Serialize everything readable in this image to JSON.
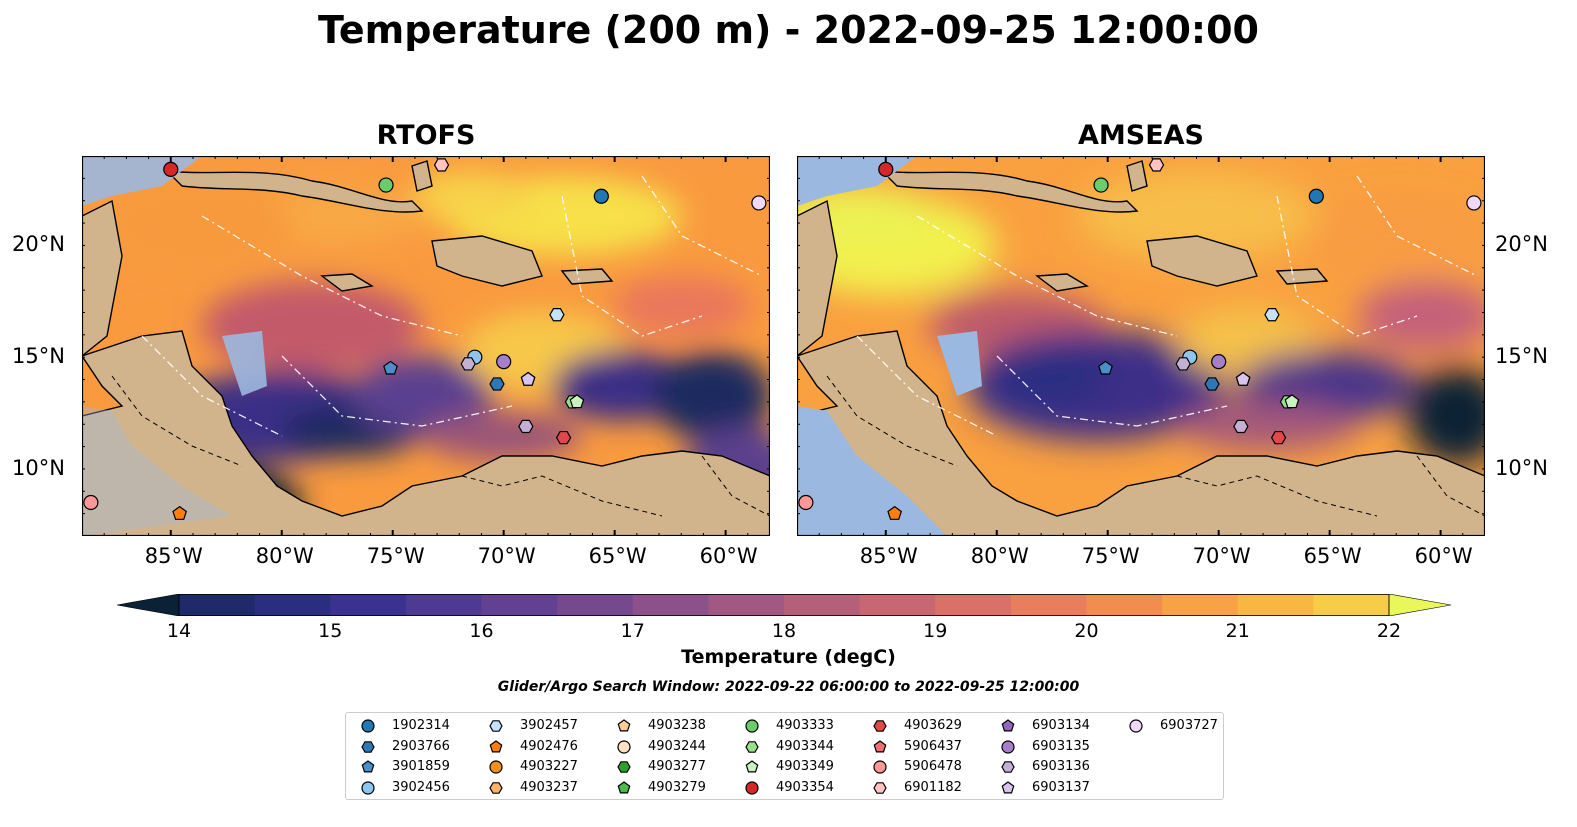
{
  "title": "Temperature (200 m) - 2022-09-25 12:00:00",
  "panels": [
    {
      "title": "RTOFS"
    },
    {
      "title": "AMSEAS"
    }
  ],
  "axes": {
    "lon_labels": [
      "85°W",
      "80°W",
      "75°W",
      "70°W",
      "65°W",
      "60°W"
    ],
    "lat_labels": [
      "20°N",
      "15°N",
      "10°N"
    ],
    "lon_range": [
      -89,
      -58
    ],
    "lat_range": [
      7,
      24
    ]
  },
  "colorbar": {
    "label": "Temperature (degC)",
    "ticks": [
      "14",
      "15",
      "16",
      "17",
      "18",
      "19",
      "20",
      "21",
      "22"
    ],
    "range": [
      14,
      22
    ],
    "extend": "both"
  },
  "search_window": "Glider/Argo Search Window: 2022-09-22 06:00:00 to 2022-09-25 12:00:00",
  "legend": [
    {
      "id": "1902314",
      "marker": "circle",
      "color": "#1f77b4"
    },
    {
      "id": "2903766",
      "marker": "hexagon",
      "color": "#2f78b7"
    },
    {
      "id": "3901859",
      "marker": "pentagon",
      "color": "#4a8fc9"
    },
    {
      "id": "3902456",
      "marker": "circle",
      "color": "#8ec5ee"
    },
    {
      "id": "3902457",
      "marker": "hexagon",
      "color": "#c5e3f8"
    },
    {
      "id": "4902476",
      "marker": "pentagon",
      "color": "#ff7f0e"
    },
    {
      "id": "4903227",
      "marker": "circle",
      "color": "#f5901e"
    },
    {
      "id": "4903237",
      "marker": "hexagon",
      "color": "#ffb167"
    },
    {
      "id": "4903238",
      "marker": "pentagon",
      "color": "#ffcc99"
    },
    {
      "id": "4903244",
      "marker": "circle",
      "color": "#ffe0c0"
    },
    {
      "id": "4903277",
      "marker": "hexagon",
      "color": "#2ca02c"
    },
    {
      "id": "4903279",
      "marker": "pentagon",
      "color": "#4cbb4c"
    },
    {
      "id": "4903333",
      "marker": "circle",
      "color": "#6acc6a"
    },
    {
      "id": "4903344",
      "marker": "hexagon",
      "color": "#98df8a"
    },
    {
      "id": "4903349",
      "marker": "pentagon",
      "color": "#c9f2c0"
    },
    {
      "id": "4903354",
      "marker": "circle",
      "color": "#d62728"
    },
    {
      "id": "4903629",
      "marker": "hexagon",
      "color": "#e0484a"
    },
    {
      "id": "5906437",
      "marker": "pentagon",
      "color": "#ee6f6f"
    },
    {
      "id": "5906478",
      "marker": "circle",
      "color": "#ff9896"
    },
    {
      "id": "6901182",
      "marker": "hexagon",
      "color": "#ffc4c2"
    },
    {
      "id": "6903134",
      "marker": "pentagon",
      "color": "#9467bd"
    },
    {
      "id": "6903135",
      "marker": "circle",
      "color": "#a67fcb"
    },
    {
      "id": "6903136",
      "marker": "hexagon",
      "color": "#c5b0d5"
    },
    {
      "id": "6903137",
      "marker": "pentagon",
      "color": "#d8c4ee"
    },
    {
      "id": "6903727",
      "marker": "circle",
      "color": "#f0d8f8"
    }
  ],
  "platforms": [
    {
      "id": "4903354",
      "lon": -85.0,
      "lat": 23.4
    },
    {
      "id": "4903333",
      "lon": -75.3,
      "lat": 22.7
    },
    {
      "id": "6901182",
      "lon": -72.8,
      "lat": 23.6
    },
    {
      "id": "1902314",
      "lon": -65.6,
      "lat": 22.2
    },
    {
      "id": "6903727",
      "lon": -58.5,
      "lat": 21.9
    },
    {
      "id": "3902457",
      "lon": -67.6,
      "lat": 16.9
    },
    {
      "id": "3902456",
      "lon": -71.3,
      "lat": 15.0
    },
    {
      "id": "6903135",
      "lon": -70.0,
      "lat": 14.8
    },
    {
      "id": "6903136",
      "lon": -71.6,
      "lat": 14.7
    },
    {
      "id": "3901859",
      "lon": -75.1,
      "lat": 14.5
    },
    {
      "id": "2903766",
      "lon": -70.3,
      "lat": 13.8
    },
    {
      "id": "6903134",
      "lon": -68.9,
      "lat": 14.0
    },
    {
      "id": "6903137",
      "lon": -68.9,
      "lat": 14.0
    },
    {
      "id": "4903344",
      "lon": -66.9,
      "lat": 13.0
    },
    {
      "id": "4903349",
      "lon": -66.7,
      "lat": 13.0
    },
    {
      "id": "6903136",
      "lon": -69.0,
      "lat": 11.9
    },
    {
      "id": "4903629",
      "lon": -67.3,
      "lat": 11.4
    },
    {
      "id": "5906478",
      "lon": -88.6,
      "lat": 8.5
    },
    {
      "id": "4902476",
      "lon": -84.6,
      "lat": 8.0
    }
  ]
}
